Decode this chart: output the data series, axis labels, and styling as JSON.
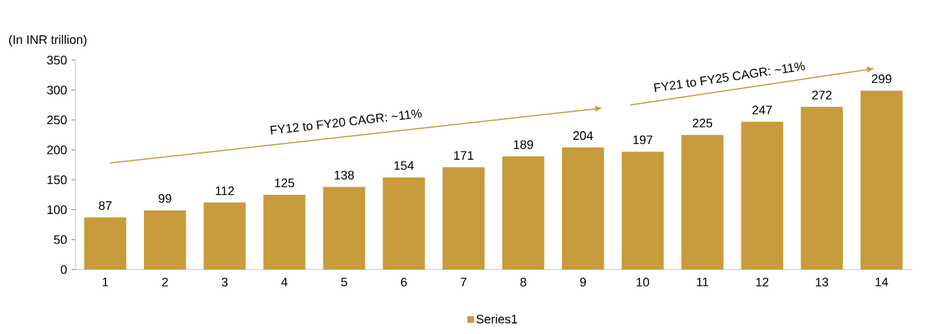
{
  "chart_data": {
    "type": "bar",
    "ylabel": "(In INR trillion)",
    "categories": [
      "1",
      "2",
      "3",
      "4",
      "5",
      "6",
      "7",
      "8",
      "9",
      "10",
      "11",
      "12",
      "13",
      "14"
    ],
    "series": [
      {
        "name": "Series1",
        "color": "#c89b3c",
        "values": [
          87,
          99,
          112,
          125,
          138,
          154,
          171,
          189,
          204,
          197,
          225,
          247,
          272,
          299
        ]
      }
    ],
    "ylim": [
      0,
      350
    ],
    "yticks": [
      0,
      50,
      100,
      150,
      200,
      250,
      300,
      350
    ],
    "data_labels": true,
    "grid": false,
    "legend": "bottom",
    "annotations": [
      "FY12 to FY20 CAGR: ~11%",
      "FY21 to FY25 CAGR: ~11%"
    ]
  }
}
